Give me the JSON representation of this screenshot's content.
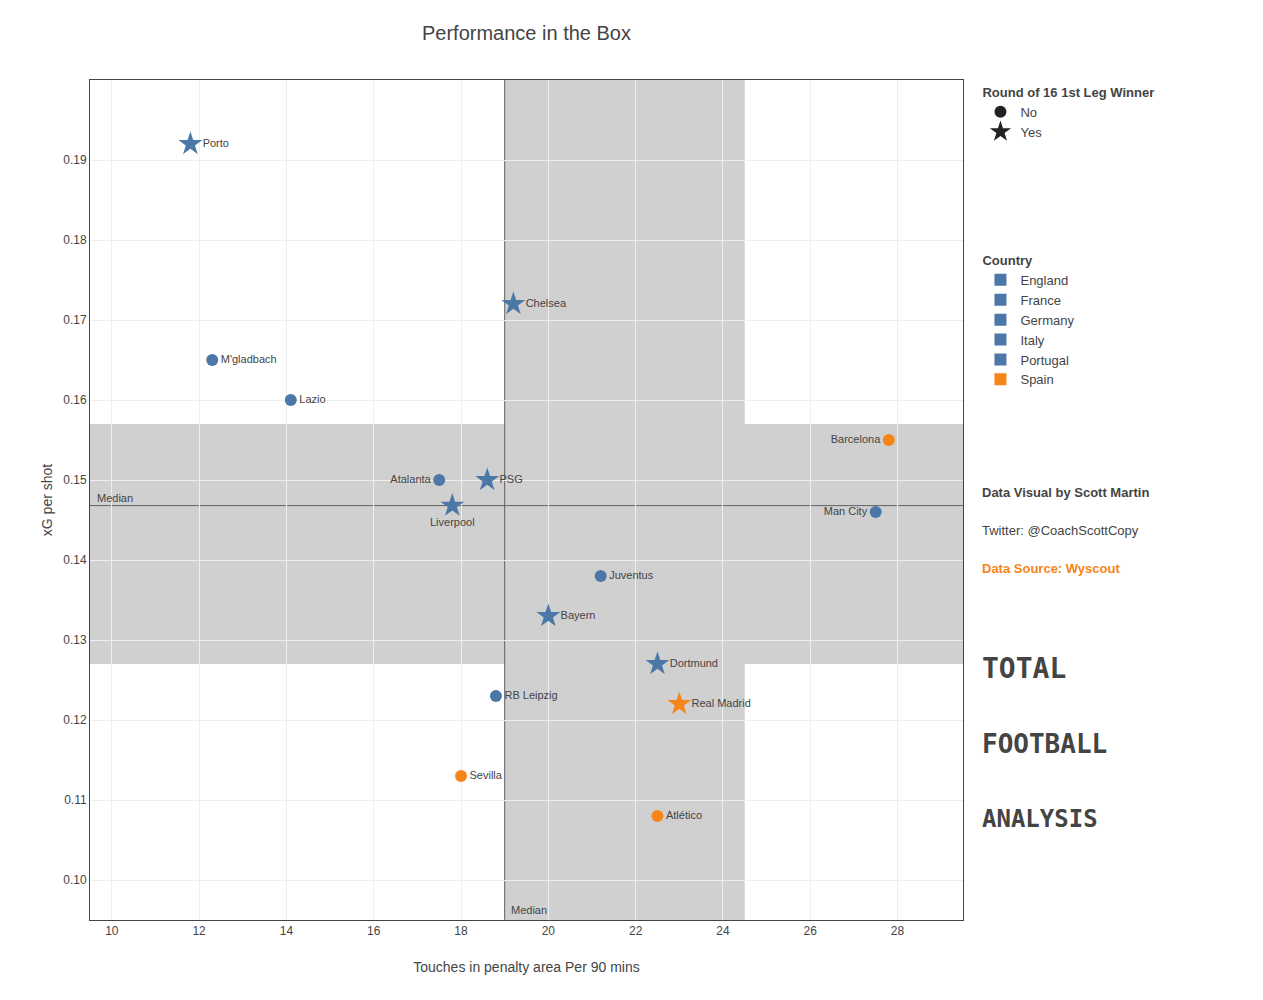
{
  "chart_data": {
    "type": "scatter",
    "title": "Performance in the Box",
    "x_label": "Touches in penalty area Per 90 mins",
    "y_label": "xG per shot",
    "xlim": [
      9.5,
      29.5
    ],
    "ylim": [
      0.095,
      0.2
    ],
    "xticks": [
      10,
      12,
      14,
      16,
      18,
      20,
      22,
      24,
      26,
      28
    ],
    "yticks": [
      {
        "value": 0.1,
        "label": "0.10"
      },
      0.11,
      0.12,
      0.13,
      0.14,
      0.15,
      0.16,
      0.17,
      0.18,
      0.19
    ],
    "grid": true,
    "legend": "upper right",
    "series": [
      {
        "name": "Porto",
        "x": [
          11.8
        ],
        "values": [
          0.192
        ],
        "color": "#4c78a8",
        "marker": "star"
      },
      {
        "name": "M'gladbach",
        "x": [
          12.3
        ],
        "values": [
          0.165
        ],
        "color": "#4c78a8",
        "marker": "circle"
      },
      {
        "name": "Lazio",
        "x": [
          14.1
        ],
        "values": [
          0.16
        ],
        "color": "#4c78a8",
        "marker": "circle"
      },
      {
        "name": "Chelsea",
        "x": [
          19.2
        ],
        "values": [
          0.172
        ],
        "color": "#4c78a8",
        "marker": "star"
      },
      {
        "name": "Atalanta",
        "x": [
          17.5
        ],
        "values": [
          0.15
        ],
        "color": "#4c78a8",
        "marker": "circle"
      },
      {
        "name": "PSG",
        "x": [
          18.6
        ],
        "values": [
          0.15
        ],
        "color": "#4c78a8",
        "marker": "star"
      },
      {
        "name": "Liverpool",
        "x": [
          17.8
        ],
        "values": [
          0.1468
        ],
        "color": "#4c78a8",
        "marker": "star"
      },
      {
        "name": "Juventus",
        "x": [
          21.2
        ],
        "values": [
          0.138
        ],
        "color": "#4c78a8",
        "marker": "circle"
      },
      {
        "name": "Bayern",
        "x": [
          20.0
        ],
        "values": [
          0.133
        ],
        "color": "#4c78a8",
        "marker": "star"
      },
      {
        "name": "Dortmund",
        "x": [
          22.5
        ],
        "values": [
          0.127
        ],
        "color": "#4c78a8",
        "marker": "star"
      },
      {
        "name": "RB Leipzig",
        "x": [
          18.8
        ],
        "values": [
          0.123
        ],
        "color": "#4c78a8",
        "marker": "circle"
      },
      {
        "name": "Sevilla",
        "x": [
          18.0
        ],
        "values": [
          0.113
        ],
        "color": "#f58518",
        "marker": "circle"
      },
      {
        "name": "Real Madrid",
        "x": [
          23.0
        ],
        "values": [
          0.122
        ],
        "color": "#f58518",
        "marker": "star"
      },
      {
        "name": "Atlético",
        "x": [
          22.5
        ],
        "values": [
          0.108
        ],
        "color": "#f58518",
        "marker": "circle"
      },
      {
        "name": "Barcelona",
        "x": [
          27.8
        ],
        "values": [
          0.155
        ],
        "color": "#f58518",
        "marker": "circle"
      },
      {
        "name": "Man City",
        "x": [
          27.5
        ],
        "values": [
          0.146
        ],
        "color": "#4c78a8",
        "marker": "circle"
      }
    ],
    "medians": {
      "x": 19.0,
      "y": 0.1468,
      "label": "Median",
      "color": "#606060"
    },
    "bands": [
      {
        "y": [
          0.127,
          0.157
        ],
        "color": "#d0d0d0"
      },
      {
        "x": [
          19.0,
          24.5
        ],
        "color": "#d0d0d0"
      }
    ],
    "legends": [
      {
        "title": "Round of 16 1st Leg Winner",
        "entries": [
          {
            "name": "No",
            "marker": "circle",
            "color": "#222222"
          },
          {
            "name": "Yes",
            "marker": "star",
            "color": "#222222"
          }
        ]
      },
      {
        "title": "Country",
        "entries": [
          {
            "name": "England",
            "marker": "square",
            "color": "#4c78a8"
          },
          {
            "name": "France",
            "marker": "square",
            "color": "#4c78a8"
          },
          {
            "name": "Germany",
            "marker": "square",
            "color": "#4c78a8"
          },
          {
            "name": "Italy",
            "marker": "square",
            "color": "#4c78a8"
          },
          {
            "name": "Portugal",
            "marker": "square",
            "color": "#4c78a8"
          },
          {
            "name": "Spain",
            "marker": "square",
            "color": "#f58518"
          }
        ]
      }
    ],
    "annotations": [
      {
        "text": "Data Visual by Scott Martin"
      },
      {
        "text": "Twitter: @CoachScottCopy"
      },
      {
        "text": "Data Source: Wyscout",
        "color": "#f58518"
      },
      {
        "text": "TOTAL"
      },
      {
        "text": "FOOTBALL"
      },
      {
        "text": "ANALYSIS"
      }
    ]
  }
}
